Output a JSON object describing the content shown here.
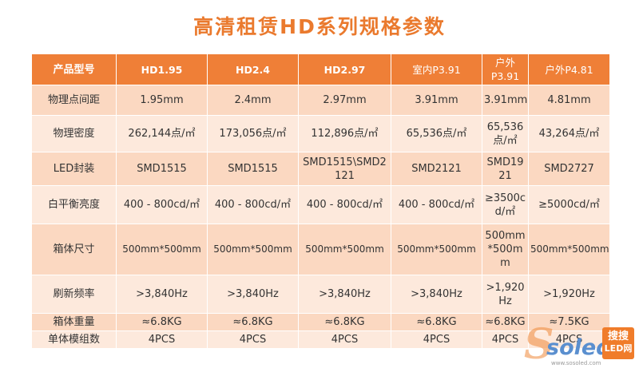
{
  "title": "高清租赁HD系列规格参数",
  "table": {
    "headers": [
      "产品型号",
      "HD1.95",
      "HD2.4",
      "HD2.97",
      "室内P3.91",
      "户外P3.91",
      "户外P4.81"
    ],
    "rows": [
      {
        "label": "物理点间距",
        "cells": [
          "1.95mm",
          "2.4mm",
          "2.97mm",
          "3.91mm",
          "3.91mm",
          "4.81mm"
        ]
      },
      {
        "label": "物理密度",
        "cells": [
          "262,144点/㎡",
          "173,056点/㎡",
          "112,896点/㎡",
          "65,536点/㎡",
          "65,536点/㎡",
          "43,264点/㎡"
        ]
      },
      {
        "label": "LED封装",
        "cells": [
          "SMD1515",
          "SMD1515",
          "SMD1515\\SMD2121",
          "SMD2121",
          "SMD1921",
          "SMD2727"
        ]
      },
      {
        "label": "白平衡亮度",
        "cells": [
          "400 - 800cd/㎡",
          "400 - 800cd/㎡",
          "400 - 800cd/㎡",
          "400 - 800cd/㎡",
          "≥3500cd/㎡",
          "≥5000cd/㎡"
        ]
      },
      {
        "label": "箱体尺寸",
        "cells": [
          "500mm*500mm",
          "500mm*500mm",
          "500mm*500mm",
          "500mm*500mm",
          "500mm*500mm",
          "500mm*500mm"
        ]
      },
      {
        "label": "刷新频率",
        "cells": [
          ">3,840Hz",
          ">3,840Hz",
          ">3,840Hz",
          ">3,840Hz",
          ">1,920Hz",
          ">1,920Hz"
        ]
      },
      {
        "label": "箱体重量",
        "cells": [
          "≈6.8KG",
          "≈6.8KG",
          "≈6.8KG",
          "≈6.8KG",
          "≈6.8KG",
          "≈7.5KG"
        ]
      },
      {
        "label": "单体模组数",
        "cells": [
          "4PCS",
          "4PCS",
          "4PCS",
          "4PCS",
          "4PCS",
          "4PCS"
        ]
      }
    ]
  },
  "watermark": {
    "brand": "soled",
    "badge_line1": "搜搜",
    "badge_line2": "LED网",
    "url": "www.sosoled.com"
  },
  "colors": {
    "accent": "#ef7f37",
    "row_dark": "#fbd8c1",
    "row_light": "#fde9dc"
  }
}
